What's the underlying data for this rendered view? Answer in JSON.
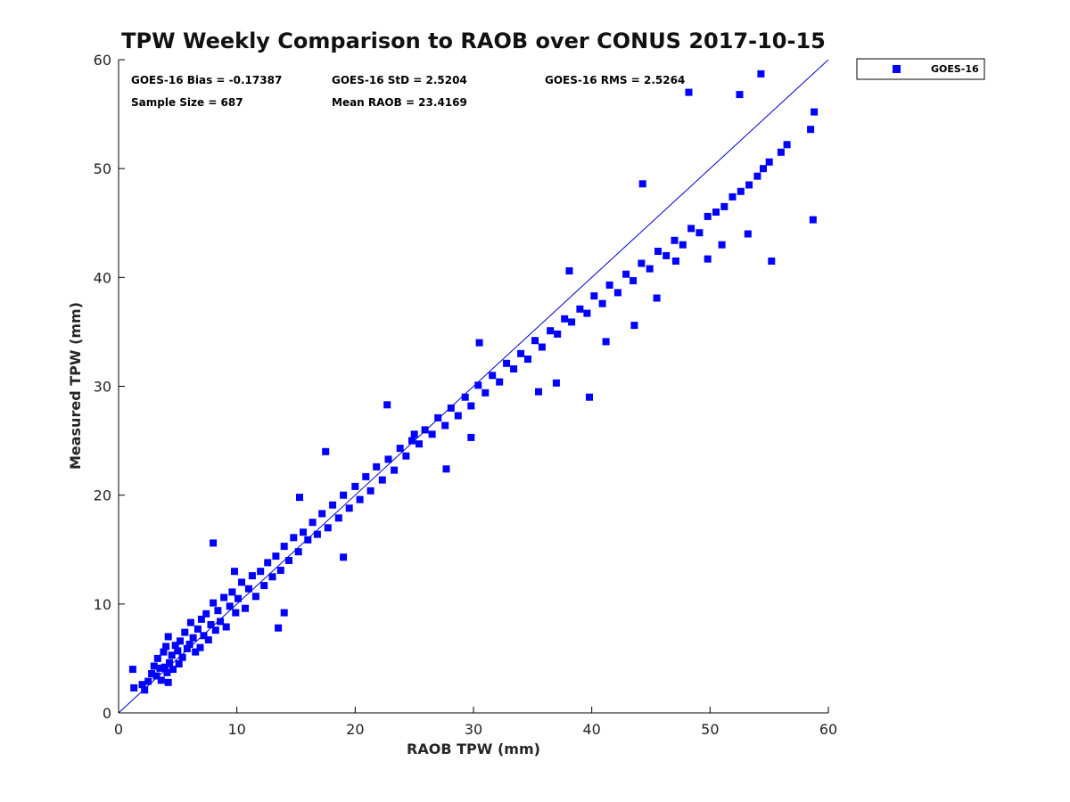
{
  "chart_data": {
    "type": "scatter",
    "title": "TPW Weekly Comparison to RAOB over CONUS 2017-10-15",
    "xlabel": "RAOB TPW (mm)",
    "ylabel": "Measured TPW (mm)",
    "xlim": [
      0,
      60
    ],
    "ylim": [
      0,
      60
    ],
    "xticks": [
      "0",
      "10",
      "20",
      "30",
      "40",
      "50",
      "60"
    ],
    "yticks": [
      "0",
      "10",
      "20",
      "30",
      "40",
      "50",
      "60"
    ],
    "grid": false,
    "legend_position": "outside-top-right",
    "stats": [
      "GOES-16 Bias = -0.17387",
      "GOES-16 StD = 2.5204",
      "GOES-16 RMS = 2.5264",
      "Sample Size = 687",
      "Mean RAOB = 23.4169"
    ],
    "reference_line": {
      "name": "1:1 line",
      "from": [
        0,
        0
      ],
      "to": [
        60,
        60
      ],
      "color": "#0000cc"
    },
    "series": [
      {
        "name": "GOES-16",
        "color": "#0000ff",
        "marker": "square",
        "x": [
          1.2,
          1.3,
          2.0,
          2.2,
          2.5,
          2.8,
          3.0,
          3.2,
          3.3,
          3.5,
          3.6,
          3.8,
          3.9,
          4.0,
          4.1,
          4.2,
          4.3,
          4.5,
          4.6,
          4.8,
          5.0,
          5.1,
          5.2,
          5.4,
          5.6,
          5.8,
          6.0,
          6.1,
          6.3,
          6.5,
          6.7,
          6.9,
          7.0,
          7.2,
          7.4,
          7.6,
          7.8,
          8.0,
          8.2,
          8.4,
          8.6,
          8.9,
          9.1,
          9.4,
          9.6,
          9.9,
          10.1,
          10.4,
          10.7,
          11.0,
          11.3,
          11.6,
          12.0,
          12.3,
          12.6,
          13.0,
          13.3,
          13.7,
          14.0,
          14.4,
          14.8,
          15.2,
          15.6,
          16.0,
          16.4,
          16.8,
          17.2,
          17.7,
          18.1,
          18.6,
          19.0,
          19.5,
          20.0,
          20.4,
          20.9,
          21.3,
          21.8,
          22.3,
          22.8,
          23.3,
          23.8,
          24.3,
          24.8,
          25.4,
          25.9,
          26.5,
          27.0,
          27.6,
          28.1,
          28.7,
          29.3,
          29.8,
          30.4,
          31.0,
          31.6,
          32.2,
          32.8,
          33.4,
          34.0,
          34.6,
          35.2,
          35.8,
          36.5,
          37.1,
          37.7,
          38.3,
          39.0,
          39.6,
          40.2,
          40.9,
          41.5,
          42.2,
          42.9,
          43.5,
          44.2,
          44.9,
          45.6,
          46.3,
          47.0,
          47.7,
          48.4,
          49.1,
          49.8,
          50.5,
          51.2,
          51.9,
          52.6,
          53.3,
          54.0,
          54.5,
          55.0,
          56.0,
          56.5,
          58.5,
          58.8,
          8.0,
          13.5,
          14.0,
          17.5,
          19.0,
          25.0,
          27.7,
          29.8,
          35.5,
          37.0,
          39.8,
          41.2,
          43.6,
          45.5,
          47.1,
          49.8,
          51.0,
          53.2,
          55.2,
          58.7,
          4.2,
          9.8,
          15.3,
          22.7,
          30.5,
          38.1,
          44.3,
          48.2,
          52.5,
          54.3
        ],
        "y": [
          4.0,
          2.3,
          2.6,
          2.1,
          2.9,
          3.6,
          4.3,
          3.4,
          5.0,
          4.1,
          3.0,
          5.6,
          4.2,
          6.1,
          3.7,
          7.0,
          4.6,
          5.3,
          4.0,
          6.2,
          5.7,
          4.5,
          6.6,
          5.1,
          7.4,
          5.9,
          6.3,
          8.3,
          6.9,
          5.6,
          7.7,
          6.0,
          8.6,
          7.1,
          9.1,
          6.7,
          8.1,
          10.1,
          7.6,
          9.4,
          8.4,
          10.6,
          7.9,
          9.8,
          11.1,
          9.2,
          10.5,
          12.0,
          9.6,
          11.4,
          12.6,
          10.7,
          13.0,
          11.7,
          13.8,
          12.5,
          14.4,
          13.1,
          15.3,
          14.0,
          16.1,
          14.8,
          16.6,
          15.9,
          17.5,
          16.4,
          18.3,
          17.0,
          19.1,
          17.9,
          20.0,
          18.8,
          20.8,
          19.6,
          21.7,
          20.4,
          22.6,
          21.4,
          23.3,
          22.3,
          24.3,
          23.6,
          25.0,
          24.7,
          26.0,
          25.6,
          27.1,
          26.4,
          28.0,
          27.3,
          29.0,
          28.2,
          30.1,
          29.4,
          31.0,
          30.4,
          32.1,
          31.6,
          33.0,
          32.5,
          34.2,
          33.6,
          35.1,
          34.8,
          36.2,
          35.9,
          37.1,
          36.7,
          38.3,
          37.6,
          39.3,
          38.6,
          40.3,
          39.7,
          41.3,
          40.8,
          42.4,
          42.0,
          43.4,
          43.0,
          44.5,
          44.1,
          45.6,
          46.0,
          46.5,
          47.4,
          47.9,
          48.5,
          49.3,
          50.0,
          50.6,
          51.5,
          52.2,
          53.6,
          55.2,
          15.6,
          7.8,
          9.2,
          24.0,
          14.3,
          25.6,
          22.4,
          25.3,
          29.5,
          30.3,
          29.0,
          34.1,
          35.6,
          38.1,
          41.5,
          41.7,
          43.0,
          44.0,
          41.5,
          45.3,
          2.8,
          13.0,
          19.8,
          28.3,
          34.0,
          40.6,
          48.6,
          57.0,
          56.8,
          58.7
        ]
      }
    ]
  }
}
